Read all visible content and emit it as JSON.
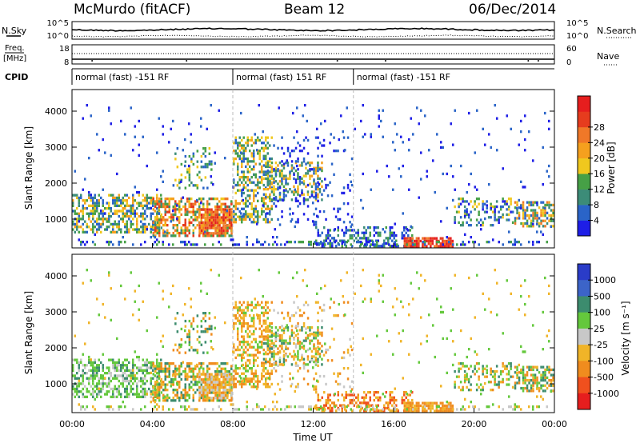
{
  "header": {
    "site": "McMurdo (fitACF)",
    "beam": "Beam 12",
    "date": "06/Dec/2014"
  },
  "strip_panels": {
    "nsky_label": "N.Sky",
    "nsearch_label": "N.Search",
    "freq_label": "Freq.",
    "freq_unit": "[MHz]",
    "nave_label": "Nave",
    "cpid_label": "CPID",
    "noise_ticks_left": [
      "10^5",
      "10^0"
    ],
    "noise_ticks_right": [
      "10^5",
      "10^0"
    ],
    "freq_ticks": [
      "18",
      "8"
    ],
    "nave_ticks": [
      "60",
      "0"
    ],
    "cpid_segments": [
      {
        "label": "normal (fast) -151 RF",
        "start_hour": 0
      },
      {
        "label": "normal (fast) 151 RF",
        "start_hour": 8
      },
      {
        "label": "normal (fast) -151 RF",
        "start_hour": 14
      }
    ]
  },
  "chart_data": [
    {
      "type": "heatmap",
      "name": "Power",
      "ylabel": "Slant Range [km]",
      "yticks": [
        1000,
        2000,
        3000,
        4000
      ],
      "ylim": [
        200,
        4600
      ],
      "xlim": [
        0,
        24
      ],
      "colorbar": {
        "label": "Power [dB]",
        "ticks": [
          "4",
          "8",
          "12",
          "16",
          "20",
          "24",
          "28"
        ],
        "colors": [
          "#1e1ee6",
          "#2a64c8",
          "#3c8c78",
          "#46a046",
          "#f0c81e",
          "#f5a01e",
          "#f07828",
          "#e63c1e",
          "#e61e1e"
        ]
      }
    },
    {
      "type": "heatmap",
      "name": "Velocity",
      "ylabel": "Slant Range [km]",
      "yticks": [
        1000,
        2000,
        3000,
        4000
      ],
      "ylim": [
        200,
        4600
      ],
      "xlim": [
        0,
        24
      ],
      "xticks": [
        "00:00",
        "04:00",
        "08:00",
        "12:00",
        "16:00",
        "20:00",
        "00:00"
      ],
      "xlabel": "Time UT",
      "colorbar": {
        "label": "Velocity [m s⁻¹]",
        "ticks": [
          "1000",
          "500",
          "100",
          "25",
          "-25",
          "-100",
          "-500",
          "-1000"
        ],
        "colors": [
          "#2a3cc8",
          "#3c64c8",
          "#3c8c6e",
          "#64c83c",
          "#c8c8c8",
          "#f0b428",
          "#f08c1e",
          "#f0501e",
          "#e61e1e"
        ]
      }
    }
  ]
}
